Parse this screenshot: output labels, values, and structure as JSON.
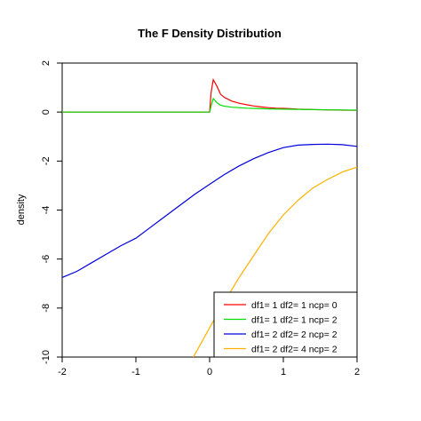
{
  "chart_data": {
    "type": "line",
    "title": "The F Density Distribution",
    "xlabel": "",
    "ylabel": "density",
    "xlim": [
      -2,
      2
    ],
    "ylim": [
      -10,
      2
    ],
    "xticks": [
      -2,
      -1,
      0,
      1,
      2
    ],
    "yticks": [
      -10,
      -8,
      -6,
      -4,
      -2,
      0,
      2
    ],
    "xtick_labels": [
      "-2",
      "-1",
      "0",
      "1",
      "2"
    ],
    "ytick_labels": [
      "-10",
      "-8",
      "-6",
      "-4",
      "-2",
      "0",
      "2"
    ],
    "legend_position": "bottom-right",
    "grid": false,
    "series": [
      {
        "name": "df1= 1 df2= 1  ncp= 0",
        "color": "#FF0000",
        "x": [
          -2,
          0.0,
          0.02,
          0.05,
          0.1,
          0.15,
          0.2,
          0.3,
          0.4,
          0.5,
          0.6,
          0.7,
          0.8,
          0.9,
          1.0,
          1.2,
          1.4,
          1.6,
          1.8,
          2.0
        ],
        "y": [
          0,
          0,
          0.8,
          1.32,
          1.05,
          0.72,
          0.6,
          0.45,
          0.36,
          0.3,
          0.25,
          0.21,
          0.18,
          0.16,
          0.15,
          0.12,
          0.1,
          0.09,
          0.08,
          0.07
        ]
      },
      {
        "name": "df1= 1 df2= 1  ncp= 2",
        "color": "#00DD00",
        "x": [
          -2,
          0.0,
          0.02,
          0.05,
          0.1,
          0.15,
          0.2,
          0.3,
          0.4,
          0.5,
          0.6,
          0.8,
          1.0,
          1.2,
          1.4,
          1.6,
          1.8,
          2.0
        ],
        "y": [
          0,
          0,
          0.25,
          0.55,
          0.38,
          0.28,
          0.24,
          0.2,
          0.18,
          0.16,
          0.15,
          0.13,
          0.12,
          0.11,
          0.1,
          0.09,
          0.085,
          0.08
        ]
      },
      {
        "name": "df1= 2 df2= 2  ncp= 2",
        "color": "#0000DD",
        "x": [
          -2.0,
          -1.8,
          -1.6,
          -1.4,
          -1.2,
          -1.0,
          -0.8,
          -0.6,
          -0.4,
          -0.2,
          0.0,
          0.2,
          0.4,
          0.6,
          0.8,
          1.0,
          1.2,
          1.4,
          1.6,
          1.8,
          2.0
        ],
        "y": [
          -6.75,
          -6.5,
          -6.15,
          -5.8,
          -5.45,
          -5.15,
          -4.7,
          -4.25,
          -3.8,
          -3.35,
          -2.95,
          -2.55,
          -2.2,
          -1.9,
          -1.65,
          -1.45,
          -1.35,
          -1.32,
          -1.31,
          -1.33,
          -1.4
        ]
      },
      {
        "name": "df1= 2 df2= 4  ncp= 2",
        "color": "#FFB000",
        "x": [
          -0.22,
          -0.1,
          0.0,
          0.2,
          0.4,
          0.6,
          0.8,
          1.0,
          1.2,
          1.4,
          1.6,
          1.8,
          2.0
        ],
        "y": [
          -10.0,
          -9.35,
          -8.8,
          -7.75,
          -6.75,
          -5.85,
          -4.95,
          -4.2,
          -3.6,
          -3.1,
          -2.75,
          -2.45,
          -2.25
        ]
      }
    ]
  }
}
